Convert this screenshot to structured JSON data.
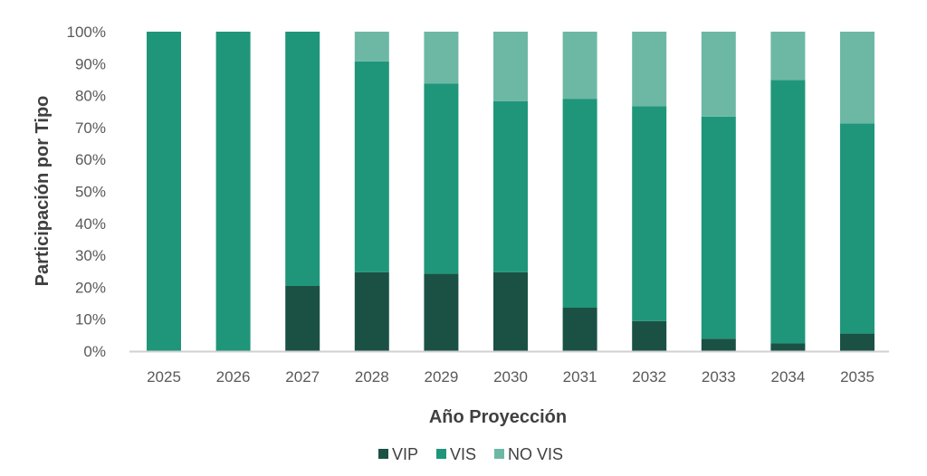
{
  "chart_data": {
    "type": "bar",
    "stacked": true,
    "percent": true,
    "title": "",
    "xlabel": "Año Proyección",
    "ylabel": "Participación por Tipo",
    "ylim": [
      0,
      100
    ],
    "yticks": [
      "0%",
      "10%",
      "20%",
      "30%",
      "40%",
      "50%",
      "60%",
      "70%",
      "80%",
      "90%",
      "100%"
    ],
    "grid": false,
    "legend_position": "bottom",
    "categories": [
      "2025",
      "2026",
      "2027",
      "2028",
      "2029",
      "2030",
      "2031",
      "2032",
      "2033",
      "2034",
      "2035"
    ],
    "series": [
      {
        "name": "VIP",
        "color": "#1b5145",
        "values": [
          0,
          0,
          20.4,
          24.7,
          24.2,
          24.7,
          13.6,
          9.4,
          3.9,
          2.4,
          5.5
        ]
      },
      {
        "name": "VIS",
        "color": "#1f967a",
        "values": [
          100,
          100,
          79.6,
          66.0,
          59.6,
          53.5,
          65.4,
          67.3,
          69.5,
          82.5,
          65.8
        ]
      },
      {
        "name": "NO VIS",
        "color": "#6db8a5",
        "values": [
          0,
          0,
          0,
          9.3,
          16.2,
          21.8,
          21.0,
          23.3,
          26.6,
          15.1,
          28.7
        ]
      }
    ]
  }
}
